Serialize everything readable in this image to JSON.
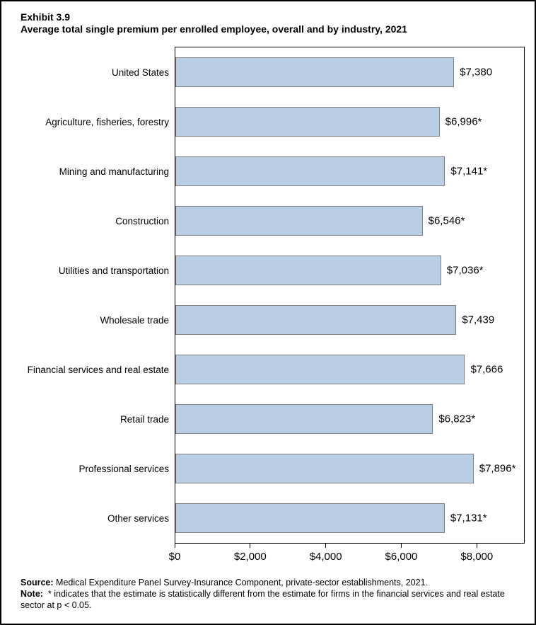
{
  "title": {
    "exhibit": "Exhibit 3.9",
    "text": "Average total single premium per enrolled employee, overall and by industry, 2021"
  },
  "chart_data": {
    "type": "bar",
    "orientation": "horizontal",
    "title": "Average total single premium per enrolled employee, overall and by industry, 2021",
    "categories": [
      "United States",
      "Agriculture, fisheries, forestry",
      "Mining and manufacturing",
      "Construction",
      "Utilities and transportation",
      "Wholesale trade",
      "Financial services and real estate",
      "Retail trade",
      "Professional services",
      "Other services"
    ],
    "values": [
      7380,
      6996,
      7141,
      6546,
      7036,
      7439,
      7666,
      6823,
      7896,
      7131
    ],
    "value_labels": [
      "$7,380",
      "$6,996*",
      "$7,141*",
      "$6,546*",
      "$7,036*",
      "$7,439",
      "$7,666",
      "$6,823*",
      "$7,896*",
      "$7,131*"
    ],
    "xlabel": "",
    "ylabel": "",
    "xlim": [
      0,
      9230
    ],
    "x_ticks": [
      {
        "value": 0,
        "label": "$0"
      },
      {
        "value": 2000,
        "label": "$2,000"
      },
      {
        "value": 4000,
        "label": "$4,000"
      },
      {
        "value": 6000,
        "label": "$6,000"
      },
      {
        "value": 8000,
        "label": "$8,000"
      }
    ],
    "grid": false,
    "legend": "none",
    "colors": {
      "bar_fill": "#b9cde5",
      "bar_border": "#7f7f7f",
      "axis": "#000000",
      "text": "#000000"
    }
  },
  "footer": {
    "source_label": "Source:",
    "source_text": "Medical Expenditure Panel Survey-Insurance Component, private-sector establishments, 2021.",
    "note_label": "Note:",
    "note_text": "* indicates that the estimate is statistically different from the estimate for firms in the financial services and real estate sector at p < 0.05."
  }
}
